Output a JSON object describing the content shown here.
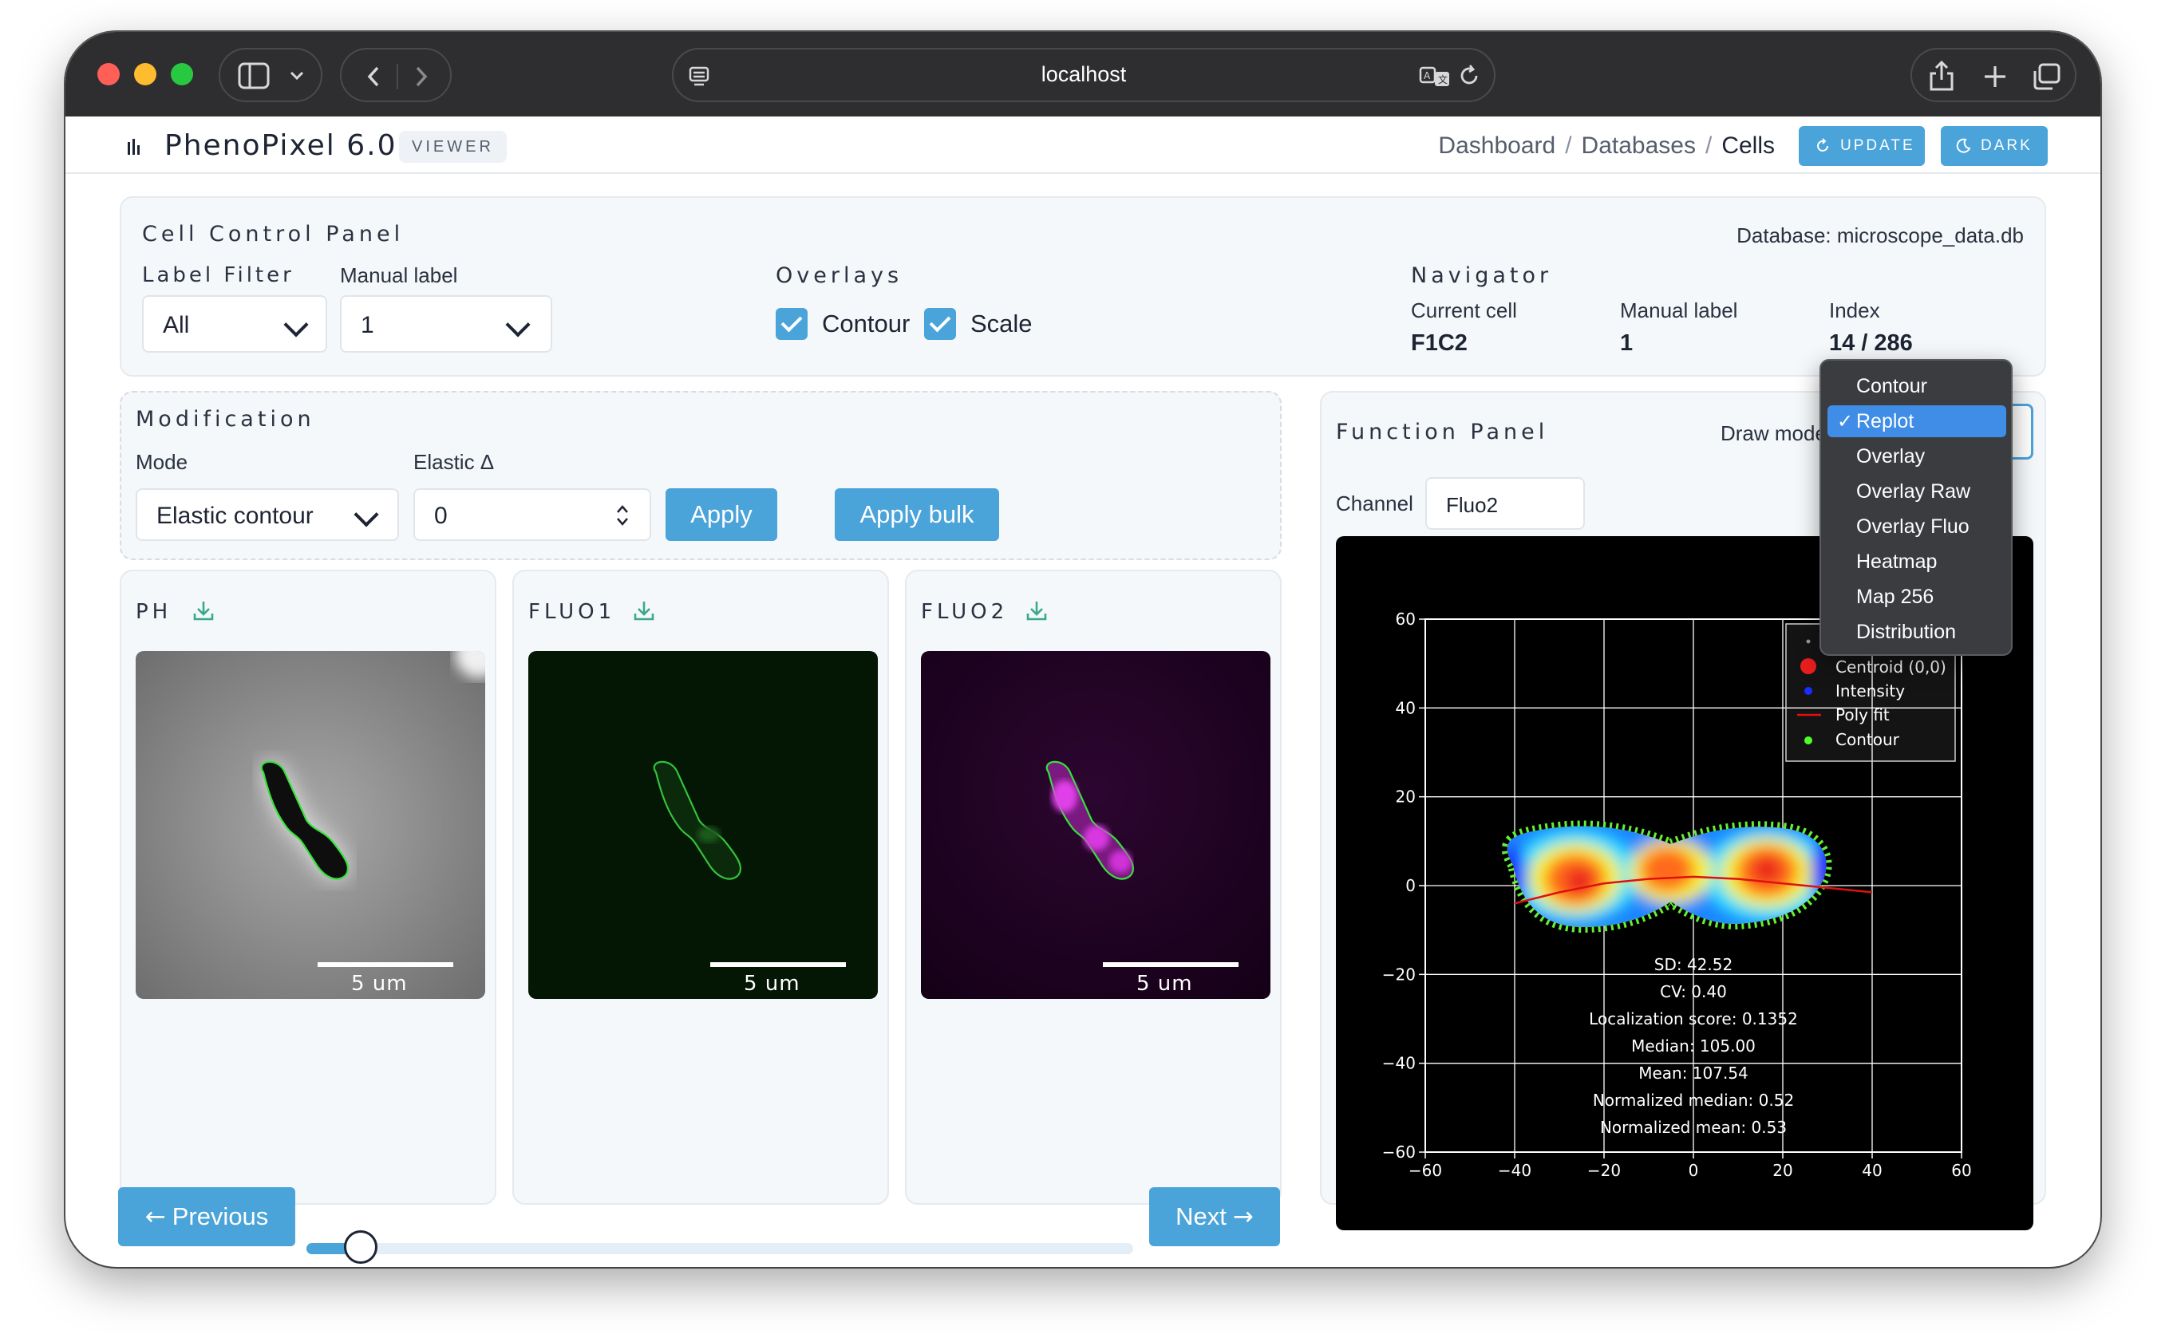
{
  "browser": {
    "url": "localhost"
  },
  "app": {
    "title": "PhenoPixel 6.0",
    "badge": "VIEWER"
  },
  "breadcrumbs": {
    "dashboard": "Dashboard",
    "databases": "Databases",
    "cells": "Cells",
    "sep": "/"
  },
  "top_buttons": {
    "update": "UPDATE",
    "dark": "DARK"
  },
  "control_panel": {
    "title": "Cell Control Panel",
    "database": "Database: microscope_data.db",
    "label_filter": {
      "label": "Label Filter",
      "value": "All"
    },
    "manual_label": {
      "label": "Manual label",
      "value": "1"
    },
    "overlays": {
      "title": "Overlays",
      "contour": "Contour",
      "scale": "Scale"
    },
    "navigator": {
      "title": "Navigator",
      "current_cell_label": "Current cell",
      "current_cell": "F1C2",
      "manual_label_label": "Manual label",
      "manual_label": "1",
      "index_label": "Index",
      "index": "14 / 286"
    }
  },
  "modification": {
    "title": "Modification",
    "mode_label": "Mode",
    "mode_value": "Elastic contour",
    "elastic_label": "Elastic Δ",
    "elastic_value": "0",
    "apply": "Apply",
    "apply_bulk": "Apply bulk"
  },
  "images": [
    {
      "title": "PH",
      "scale": "5 um"
    },
    {
      "title": "FLUO1",
      "scale": "5 um"
    },
    {
      "title": "FLUO2",
      "scale": "5 um"
    }
  ],
  "function_panel": {
    "title": "Function Panel",
    "draw_mode_label": "Draw mode",
    "channel_label": "Channel",
    "channel_value": "Fluo2"
  },
  "draw_mode_menu": {
    "items": [
      "Contour",
      "Replot",
      "Overlay",
      "Overlay Raw",
      "Overlay Fluo",
      "Heatmap",
      "Map 256",
      "Distribution"
    ],
    "selected": "Replot"
  },
  "chart_data": {
    "type": "scatter",
    "title": "",
    "xlabel": "",
    "ylabel": "",
    "xlim": [
      -60,
      60
    ],
    "ylim": [
      -60,
      60
    ],
    "x_ticks": [
      -60,
      -40,
      -20,
      0,
      20,
      40,
      60
    ],
    "y_ticks": [
      -60,
      -40,
      -20,
      0,
      20,
      40,
      60
    ],
    "tick_labels_x": [
      "−60",
      "−40",
      "−20",
      "0",
      "20",
      "40",
      "60"
    ],
    "tick_labels_y": [
      "60",
      "40",
      "20",
      "0",
      "−20",
      "−40",
      "−60"
    ],
    "grid": true,
    "legend_position": "top-right",
    "legend": [
      "Centroid (0,0)",
      "Intensity",
      "Poly fit",
      "Contour"
    ],
    "poly_fit": {
      "x": [
        -40,
        -30,
        -20,
        -10,
        0,
        10,
        20,
        30,
        40
      ],
      "y": [
        -4,
        -1.5,
        0.5,
        1.5,
        2,
        1.5,
        0.5,
        -0.5,
        -1.5
      ]
    },
    "stats": [
      "SD: 42.52",
      "CV: 0.40",
      "Localization score: 0.1352",
      "Median: 105.00",
      "Mean: 107.54",
      "Normalized median: 0.52",
      "Normalized mean: 0.53"
    ]
  },
  "pager": {
    "previous": "Previous",
    "next": "Next",
    "position": 0.049
  }
}
